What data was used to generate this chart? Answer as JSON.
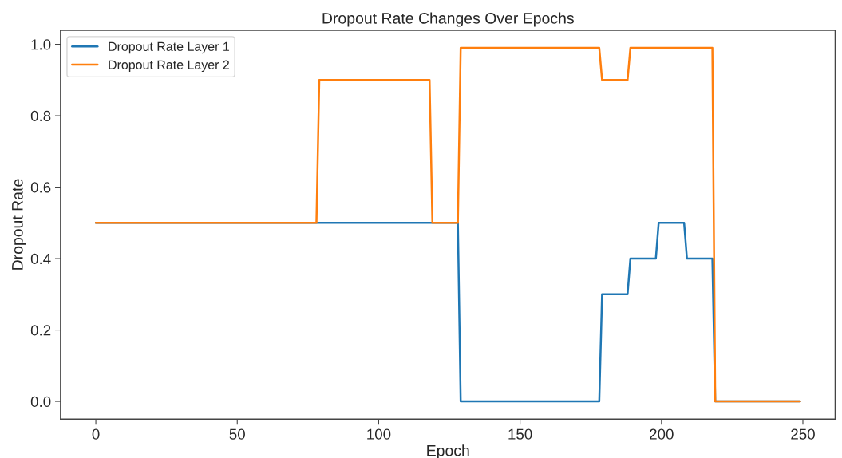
{
  "chart_data": {
    "type": "line",
    "title": "Dropout Rate Changes Over Epochs",
    "xlabel": "Epoch",
    "ylabel": "Dropout Rate",
    "series": [
      {
        "name": "Dropout Rate Layer 1",
        "color": "#1f77b4",
        "x": [
          0,
          128,
          129,
          178,
          179,
          188,
          189,
          198,
          199,
          208,
          209,
          218,
          219,
          249
        ],
        "values": [
          0.5,
          0.5,
          0.0,
          0.0,
          0.3,
          0.3,
          0.4,
          0.4,
          0.5,
          0.5,
          0.4,
          0.4,
          0.0,
          0.0
        ]
      },
      {
        "name": "Dropout Rate Layer 2",
        "color": "#ff7f0e",
        "x": [
          0,
          78,
          79,
          118,
          119,
          128,
          129,
          178,
          179,
          188,
          189,
          218,
          219,
          249
        ],
        "values": [
          0.5,
          0.5,
          0.9,
          0.9,
          0.5,
          0.5,
          0.99,
          0.99,
          0.9,
          0.9,
          0.99,
          0.99,
          0.0,
          0.0
        ]
      }
    ],
    "xlim": [
      -12.45,
      261.45
    ],
    "xticks": [
      0,
      50,
      100,
      150,
      200,
      250
    ],
    "ylim": [
      -0.0495,
      1.0395
    ],
    "yticks": [
      {
        "value": 0,
        "label": "0.0"
      },
      {
        "value": 0.2,
        "label": "0.2"
      },
      {
        "value": 0.4,
        "label": "0.4"
      },
      {
        "value": 0.6,
        "label": "0.6"
      },
      {
        "value": 0.8,
        "label": "0.8"
      },
      {
        "value": 1.0,
        "label": "1.0"
      }
    ],
    "grid": false,
    "legend": "top left",
    "marker": "none",
    "line_style": "solid"
  }
}
